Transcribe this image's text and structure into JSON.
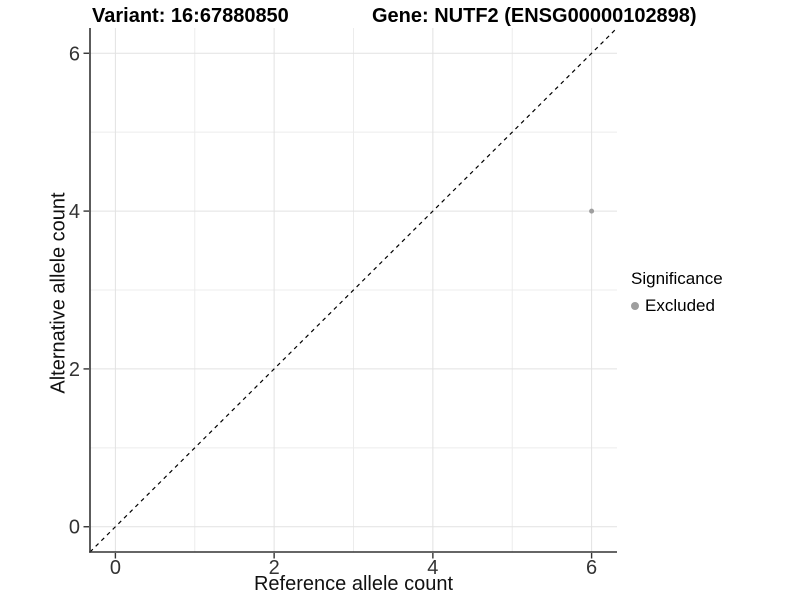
{
  "header": {
    "variant_title": "Variant: 16:67880850",
    "gene_title": "Gene: NUTF2 (ENSG00000102898)"
  },
  "legend": {
    "title": "Significance",
    "items": [
      {
        "label": "Excluded",
        "color": "#9e9e9e",
        "marker": "circle"
      }
    ]
  },
  "chart_data": {
    "type": "scatter",
    "title": "Variant: 16:67880850   Gene: NUTF2 (ENSG00000102898)",
    "xlabel": "Reference allele count",
    "ylabel": "Alternative allele count",
    "xlim": [
      -0.32,
      6.32
    ],
    "ylim": [
      -0.32,
      6.32
    ],
    "x_major_ticks": [
      0,
      2,
      4,
      6
    ],
    "x_minor_ticks": [
      1,
      3,
      5
    ],
    "y_major_ticks": [
      0,
      2,
      4,
      6
    ],
    "y_minor_ticks": [
      1,
      3,
      5
    ],
    "grid": true,
    "legend_position": "right",
    "series": [
      {
        "name": "Excluded",
        "color": "#9e9e9e",
        "marker_radius": 2.5,
        "points": [
          {
            "x": 6,
            "y": 4
          }
        ]
      }
    ],
    "reference_line": {
      "slope": 1,
      "intercept": 0,
      "style": "dashed",
      "color": "#000000"
    }
  },
  "colors": {
    "grid_major": "#e2e2e2",
    "grid_minor": "#ececec",
    "axis_line": "#333333",
    "tick_mark": "#333333",
    "tick_label": "#333333"
  }
}
